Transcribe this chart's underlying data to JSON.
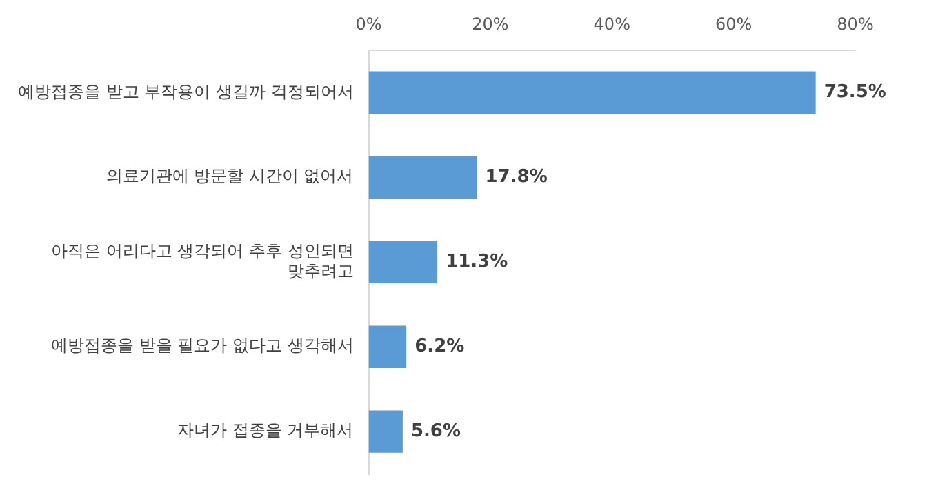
{
  "chart_data": {
    "type": "bar",
    "orientation": "horizontal",
    "categories": [
      "예방접종을 받고 부작용이 생길까 걱정되어서",
      "의료기관에 방문할 시간이 없어서",
      "아직은 어리다고 생각되어 추후 성인되면 맞추려고",
      "예방접종을 받을 필요가 없다고 생각해서",
      "자녀가 접종을 거부해서"
    ],
    "values": [
      73.5,
      17.8,
      11.3,
      6.2,
      5.6
    ],
    "value_labels": [
      "73.5%",
      "17.8%",
      "11.3%",
      "6.2%",
      "5.6%"
    ],
    "color": "#5b9bd5",
    "xlim": [
      0,
      80
    ],
    "xticks": [
      {
        "value": 0,
        "label": "0%"
      },
      {
        "value": 20,
        "label": "20%"
      },
      {
        "value": 40,
        "label": "40%"
      },
      {
        "value": 60,
        "label": "60%"
      },
      {
        "value": 80,
        "label": "80%"
      }
    ],
    "grid": false,
    "legend": false
  }
}
